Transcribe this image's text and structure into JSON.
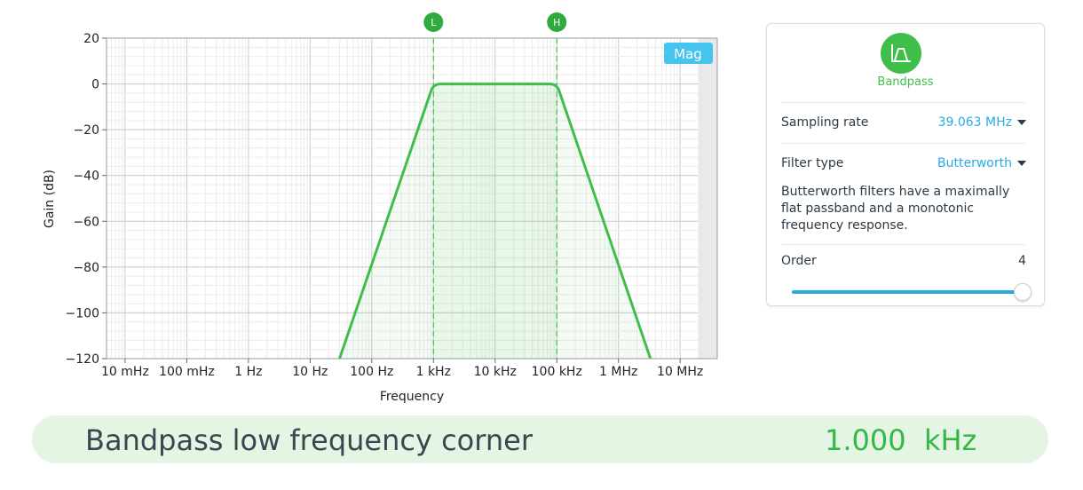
{
  "chart_data": {
    "type": "line",
    "x_scale": "log",
    "xlim": [
      0.005,
      40000000
    ],
    "ylim": [
      -120,
      20
    ],
    "xlabel": "Frequency",
    "ylabel": "Gain (dB)",
    "x_ticks": [
      {
        "value": 0.01,
        "label": "10 mHz"
      },
      {
        "value": 0.1,
        "label": "100 mHz"
      },
      {
        "value": 1,
        "label": "1 Hz"
      },
      {
        "value": 10,
        "label": "10 Hz"
      },
      {
        "value": 100,
        "label": "100 Hz"
      },
      {
        "value": 1000,
        "label": "1 kHz"
      },
      {
        "value": 10000,
        "label": "10 kHz"
      },
      {
        "value": 100000,
        "label": "100 kHz"
      },
      {
        "value": 1000000,
        "label": "1 MHz"
      },
      {
        "value": 10000000,
        "label": "10 MHz"
      }
    ],
    "y_ticks": [
      20,
      0,
      -20,
      -40,
      -60,
      -80,
      -100,
      -120
    ],
    "grid": true,
    "series": [
      {
        "color": "#3fbf4a",
        "x": [
          30,
          1000,
          100000,
          3300000
        ],
        "y": [
          -120,
          0,
          0,
          -120
        ],
        "filled": true
      }
    ],
    "markers": [
      {
        "label": "L",
        "x": 1000
      },
      {
        "label": "H",
        "x": 100000
      }
    ],
    "nyquist_x": 19531500,
    "badge": "Mag"
  },
  "panel": {
    "filter_icon": "bandpass-filter-icon",
    "filter_name": "Bandpass",
    "sampling_rate_label": "Sampling rate",
    "sampling_rate_value": "39.063 MHz",
    "filter_type_label": "Filter type",
    "filter_type_value": "Butterworth",
    "description": "Butterworth filters have a maximally flat passband and a monotonic frequency response.",
    "order_label": "Order",
    "order_value": "4",
    "order_slider_fraction": 1.0
  },
  "corner": {
    "label": "Bandpass low frequency corner",
    "value": "1.000  kHz"
  },
  "colors": {
    "accent_green": "#3fbf4a",
    "accent_blue": "#2aa9e6"
  }
}
